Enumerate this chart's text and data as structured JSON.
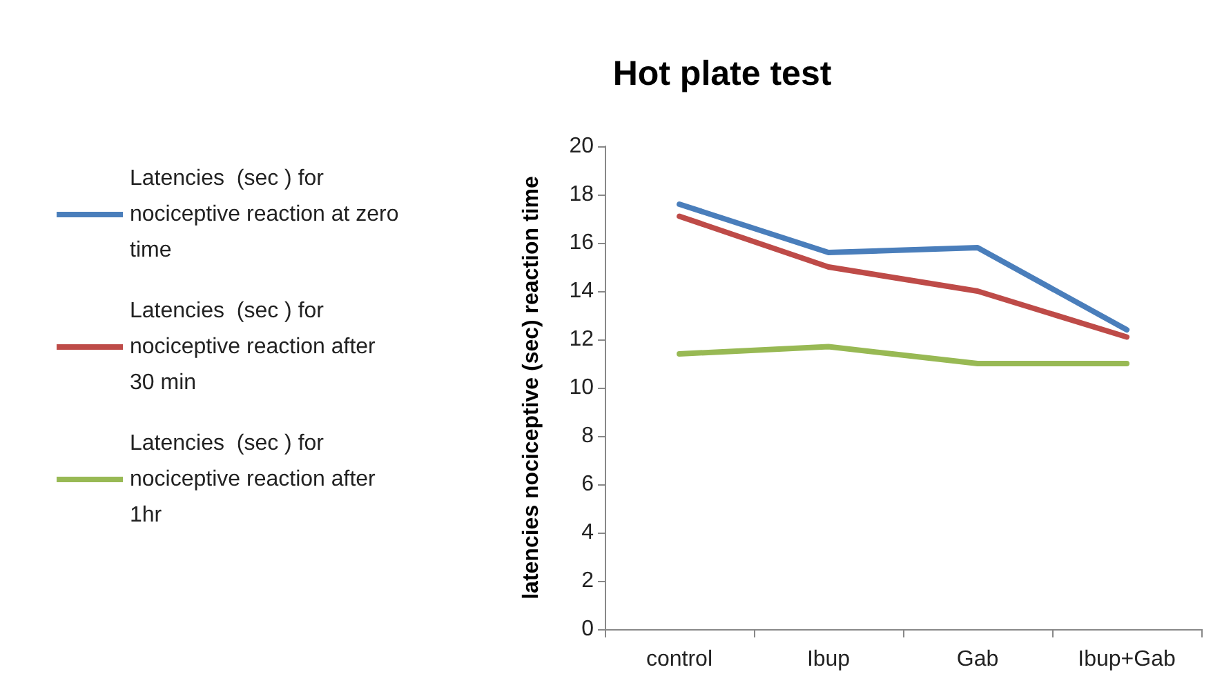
{
  "chart_data": {
    "type": "line",
    "title": "Hot plate test",
    "ylabel": "latencies nociceptive (sec) reaction time",
    "categories": [
      "control",
      "Ibup",
      "Gab",
      "Ibup+Gab"
    ],
    "series": [
      {
        "name": "Latencies  (sec ) for nociceptive reaction at zero time",
        "color": "#4a7ebb",
        "values": [
          17.6,
          15.6,
          15.8,
          12.4
        ]
      },
      {
        "name": "Latencies  (sec ) for nociceptive reaction after 30 min",
        "color": "#be4b48",
        "values": [
          17.1,
          15.0,
          14.0,
          12.1
        ]
      },
      {
        "name": "Latencies  (sec ) for nociceptive reaction after 1hr",
        "color": "#98b954",
        "values": [
          11.4,
          11.7,
          11.0,
          11.0
        ]
      }
    ],
    "ylim": [
      0,
      20
    ],
    "yticks": [
      0,
      2,
      4,
      6,
      8,
      10,
      12,
      14,
      16,
      18,
      20
    ],
    "grid": false,
    "legend": "left",
    "marker": "none",
    "line_style": "solid"
  }
}
